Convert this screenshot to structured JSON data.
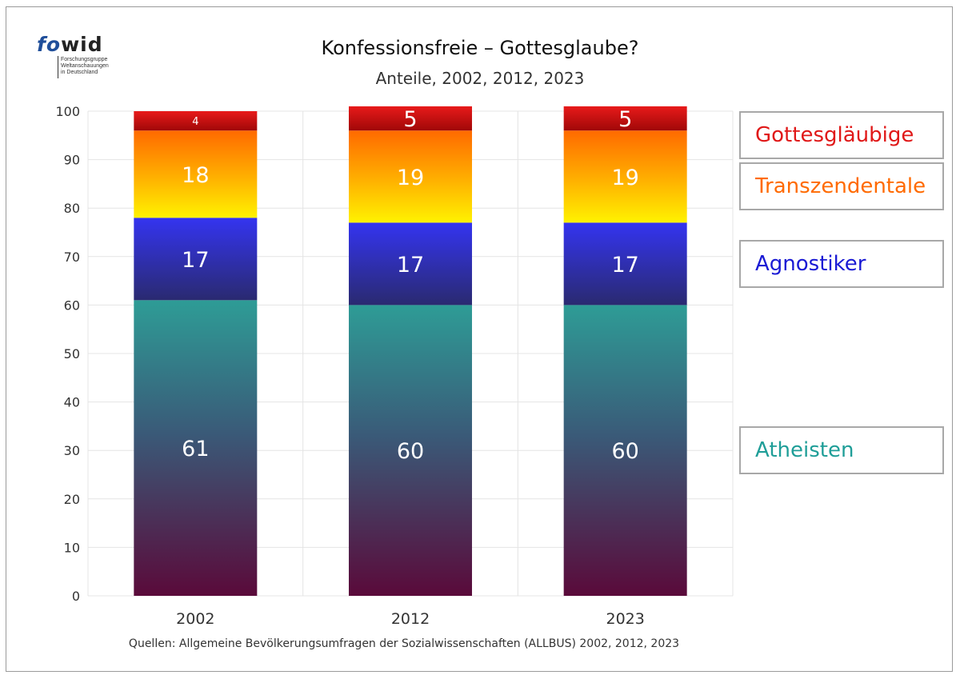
{
  "logo": {
    "brand_fo": "fo",
    "brand_wid": "wid",
    "lines": [
      "Forschungsgruppe",
      "Weltanschauungen",
      "in Deutschland"
    ]
  },
  "title": "Konfessionsfreie – Gottesglaube?",
  "subtitle": "Anteile, 2002, 2012, 2023",
  "source": "Quellen: Allgemeine Bevölkerungsumfragen der Sozialwissenschaften (ALLBUS) 2002, 2012, 2023",
  "chart_data": {
    "type": "bar",
    "stacked": true,
    "categories": [
      "2002",
      "2012",
      "2023"
    ],
    "ylim": [
      0,
      100
    ],
    "yticks": [
      0,
      10,
      20,
      30,
      40,
      50,
      60,
      70,
      80,
      90,
      100
    ],
    "grid": true,
    "legend_position": "right",
    "series": [
      {
        "name": "Atheisten",
        "values": [
          61,
          60,
          60
        ],
        "color": "#2a9d96"
      },
      {
        "name": "Agnostiker",
        "values": [
          17,
          17,
          17
        ],
        "color": "#2b2bd9"
      },
      {
        "name": "Transzendentale",
        "values": [
          18,
          19,
          19
        ],
        "color": "#ff7b00"
      },
      {
        "name": "Gottesgläubige",
        "values": [
          4,
          5,
          5
        ],
        "color": "#e01818"
      }
    ]
  }
}
